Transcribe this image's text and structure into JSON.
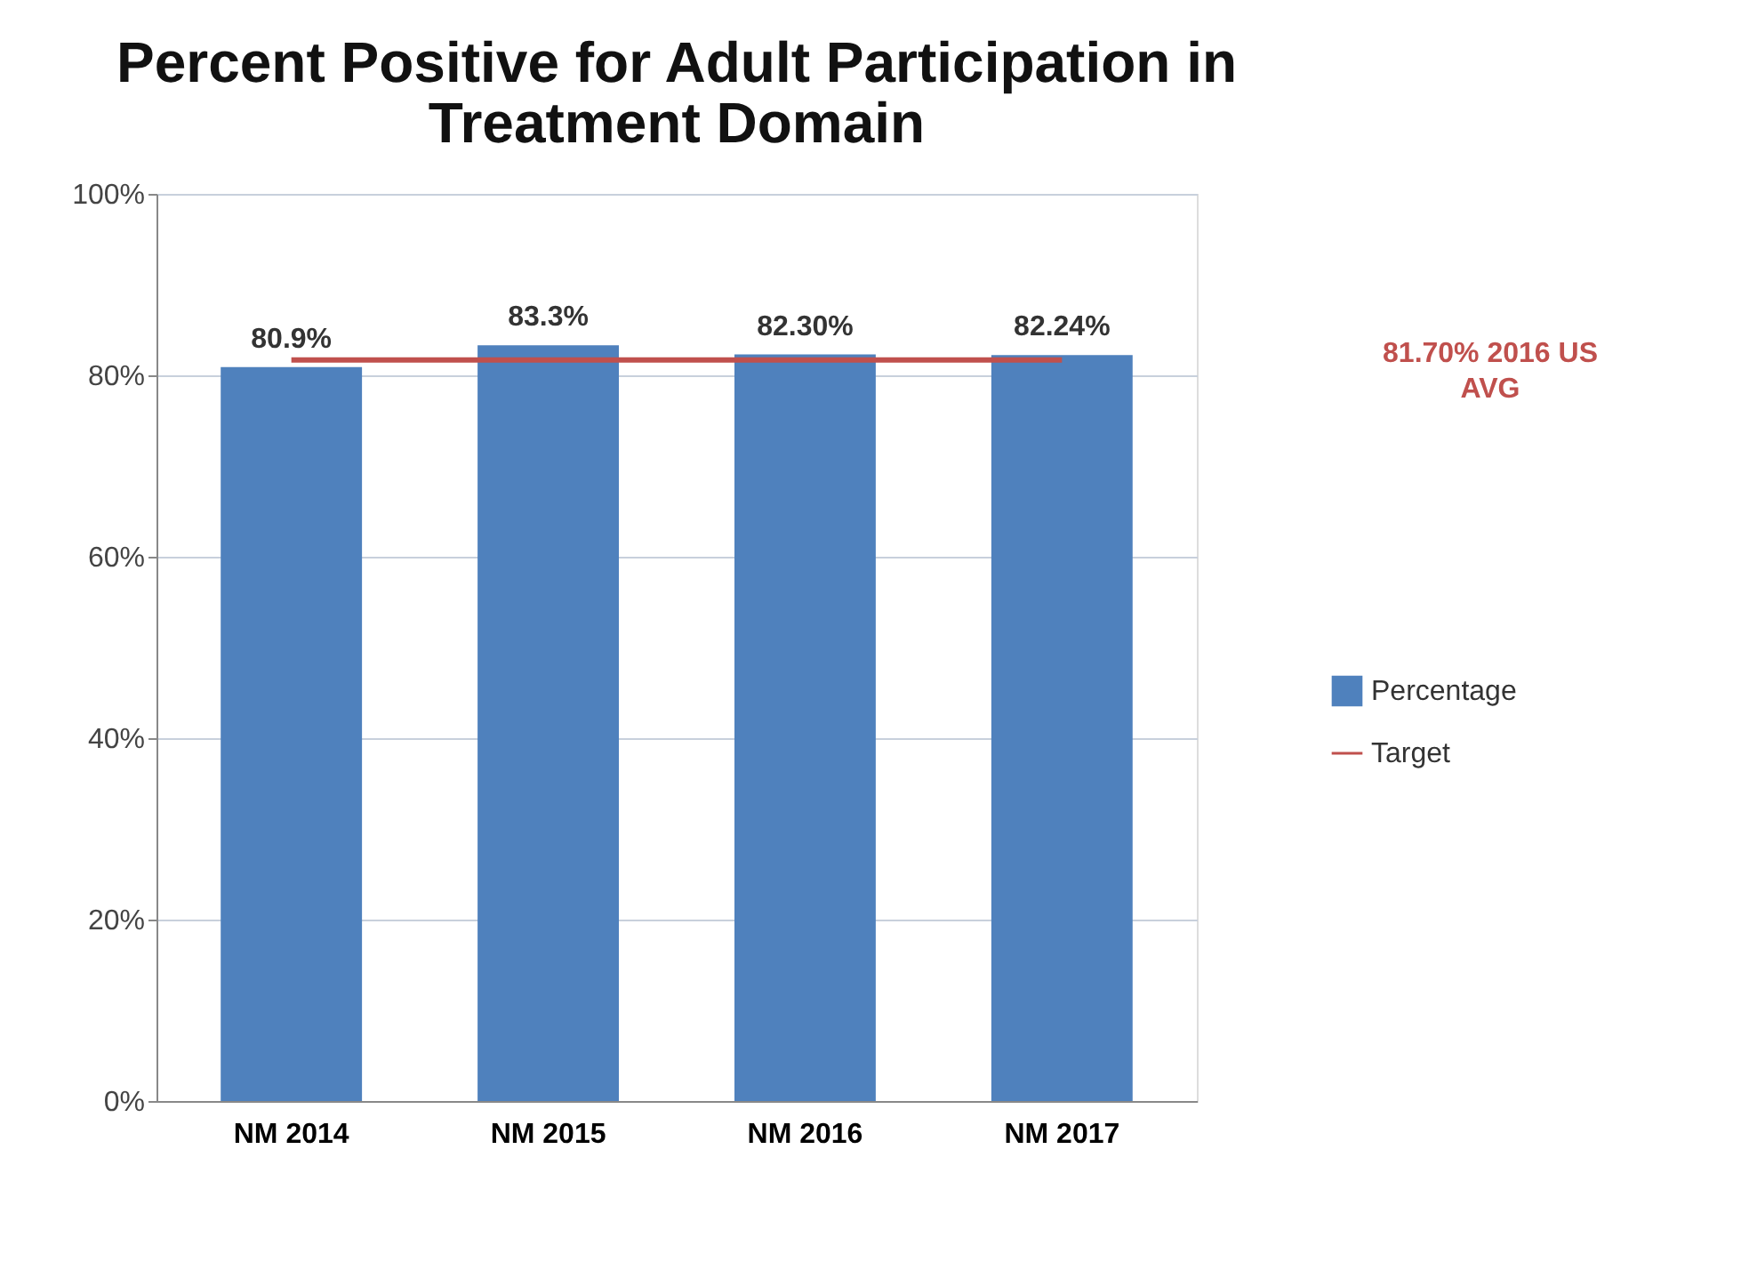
{
  "chart_data": {
    "type": "bar",
    "title": [
      "Percent Positive for Adult Participation in",
      "Treatment Domain"
    ],
    "categories": [
      "NM 2014",
      "NM 2015",
      "NM 2016",
      "NM 2017"
    ],
    "series": [
      {
        "name": "Percentage",
        "color": "#4f81bd",
        "values": [
          80.9,
          83.3,
          82.3,
          82.24
        ],
        "value_labels": [
          "80.9%",
          "83.3%",
          "82.30%",
          "82.24%"
        ]
      },
      {
        "name": "Target",
        "type": "line",
        "color": "#c0504d",
        "values": [
          81.7,
          81.7,
          81.7,
          81.7
        ]
      }
    ],
    "ylim": [
      0,
      100
    ],
    "yticks": [
      {
        "value": 0,
        "label": "0%"
      },
      {
        "value": 20,
        "label": "20%"
      },
      {
        "value": 40,
        "label": "40%"
      },
      {
        "value": 60,
        "label": "60%"
      },
      {
        "value": 80,
        "label": "80%"
      },
      {
        "value": 100,
        "label": "100%"
      }
    ],
    "grid": "y",
    "legend": "right",
    "annotations": [
      "81.70% 2016 US AVG"
    ]
  }
}
